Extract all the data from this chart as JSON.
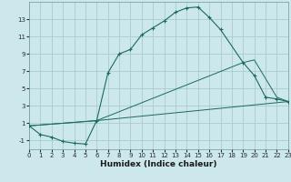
{
  "xlabel": "Humidex (Indice chaleur)",
  "background_color": "#cce8ec",
  "grid_color": "#b0d4d8",
  "line_color": "#1a6b5a",
  "curve1_x": [
    0,
    1,
    2,
    3,
    4,
    5,
    6,
    7,
    8,
    9,
    10,
    11,
    12,
    13,
    14,
    15,
    16,
    17,
    19,
    20,
    21,
    22,
    23
  ],
  "curve1_y": [
    0.7,
    -0.3,
    -0.6,
    -1.1,
    -1.3,
    -1.4,
    1.3,
    6.8,
    9.0,
    9.5,
    11.2,
    12.0,
    12.8,
    13.8,
    14.3,
    14.4,
    13.2,
    11.8,
    8.0,
    6.5,
    4.0,
    3.8,
    3.5
  ],
  "curve2_x": [
    0,
    6,
    19,
    20,
    22,
    23
  ],
  "curve2_y": [
    0.7,
    1.3,
    8.0,
    8.3,
    4.0,
    3.5
  ],
  "curve3_x": [
    0,
    6,
    23
  ],
  "curve3_y": [
    0.7,
    1.3,
    3.5
  ],
  "xlim": [
    0,
    23
  ],
  "ylim": [
    -2.0,
    15.0
  ],
  "xticks": [
    0,
    1,
    2,
    3,
    4,
    5,
    6,
    7,
    8,
    9,
    10,
    11,
    12,
    13,
    14,
    15,
    16,
    17,
    18,
    19,
    20,
    21,
    22,
    23
  ],
  "yticks": [
    -1,
    1,
    3,
    5,
    7,
    9,
    11,
    13
  ],
  "xlabel_fontsize": 6.5,
  "tick_fontsize": 5.0
}
